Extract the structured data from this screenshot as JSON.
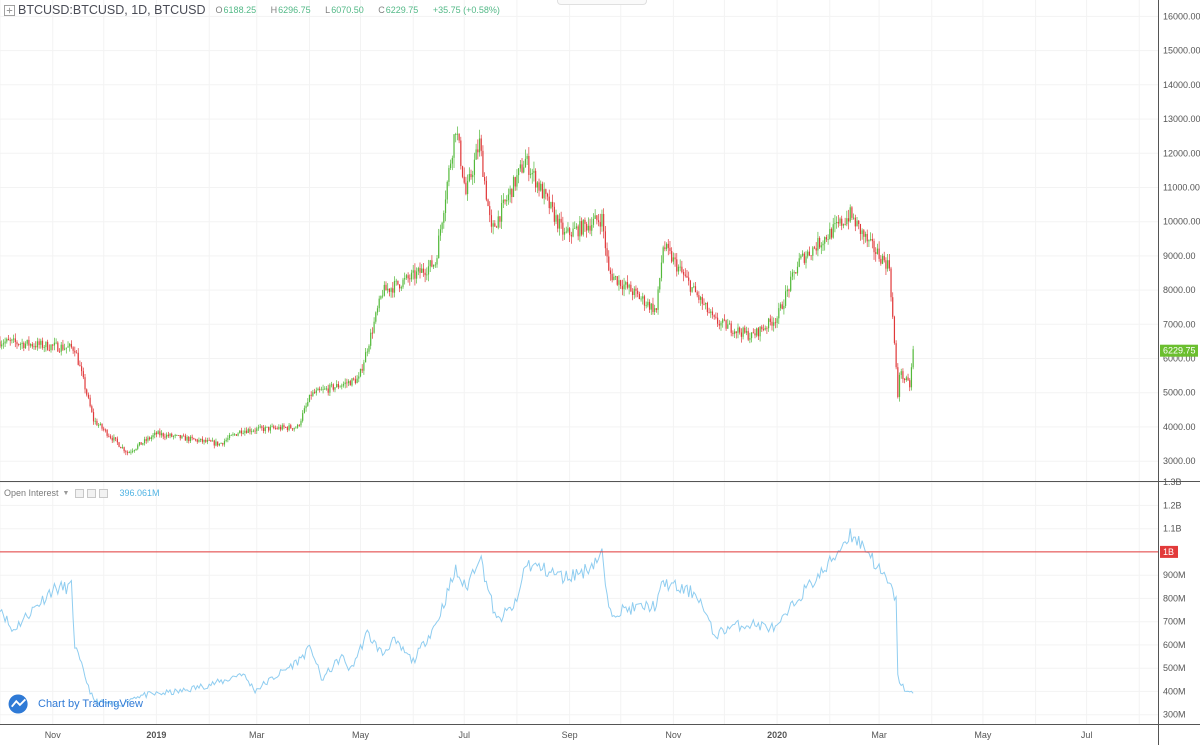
{
  "legend": {
    "symbol": "BTCUSD:BTCUSD, 1D, BTCUSD",
    "open_label": "O",
    "open": "6188.25",
    "high_label": "H",
    "high": "6296.75",
    "low_label": "L",
    "low": "6070.50",
    "close_label": "C",
    "close": "6229.75",
    "change": "+35.75 (+0.58%)"
  },
  "oi_legend": {
    "name": "Open Interest",
    "value": "396.061M"
  },
  "brand": "Chart by TradingView",
  "colors": {
    "up": "#53b93a",
    "down": "#e0383a",
    "oi_line": "#8fcdf0",
    "ref_line": "#e23a3a",
    "price_tag": "#6bbf2f"
  },
  "chart_data": [
    {
      "type": "candlestick",
      "title": "BTCUSD:BTCUSD, 1D, BTCUSD",
      "x_labels": [
        "Nov",
        "2019",
        "Mar",
        "May",
        "Jul",
        "Sep",
        "Nov",
        "2020",
        "Mar",
        "May",
        "Jul"
      ],
      "x_range": [
        "2018-10-01",
        "2020-08-12"
      ],
      "y_ticks": [
        3000,
        4000,
        5000,
        6000,
        7000,
        8000,
        9000,
        10000,
        11000,
        12000,
        13000,
        14000,
        15000,
        16000
      ],
      "ylim": [
        2420,
        16480
      ],
      "last_price_label": "6229.75",
      "grid": true,
      "series": [
        {
          "x": [
            "2018-10-01",
            "2018-11-14",
            "2018-11-25",
            "2018-12-15",
            "2019-01-01",
            "2019-02-07",
            "2019-02-20",
            "2019-03-25",
            "2019-04-02",
            "2019-04-30",
            "2019-05-14",
            "2019-06-01",
            "2019-06-14",
            "2019-06-26",
            "2019-07-02",
            "2019-07-10",
            "2019-07-17",
            "2019-08-06",
            "2019-08-29",
            "2019-09-20",
            "2019-09-24",
            "2019-10-22",
            "2019-10-26",
            "2019-11-25",
            "2019-12-17",
            "2020-01-01",
            "2020-01-14",
            "2020-02-13",
            "2020-02-24",
            "2020-03-07",
            "2020-03-12",
            "2020-03-13",
            "2020-03-19",
            "2020-03-21"
          ],
          "close": [
            6500,
            6300,
            4200,
            3250,
            3800,
            3500,
            3900,
            4000,
            4950,
            5400,
            7950,
            8400,
            8800,
            12800,
            10800,
            12300,
            9700,
            11800,
            9600,
            10100,
            8500,
            7400,
            9300,
            7100,
            6650,
            7200,
            8850,
            10200,
            9350,
            8700,
            4900,
            5600,
            5200,
            6230
          ]
        }
      ]
    },
    {
      "type": "line",
      "title": "Open Interest",
      "last_value_label": "396.061M",
      "y_ticks": [
        "300M",
        "400M",
        "500M",
        "600M",
        "700M",
        "800M",
        "900M",
        "1B",
        "1.1B",
        "1.2B",
        "1.3B"
      ],
      "ylim": [
        260000000.0,
        1305000000.0
      ],
      "hline": {
        "label": "1B",
        "value": 1000000000.0
      },
      "series": [
        {
          "name": "Open Interest",
          "x": [
            "2018-10-01",
            "2018-10-08",
            "2018-10-20",
            "2018-11-01",
            "2018-11-12",
            "2018-11-14",
            "2018-11-16",
            "2018-11-25",
            "2018-12-10",
            "2018-12-20",
            "2019-01-15",
            "2019-02-10",
            "2019-02-20",
            "2019-02-28",
            "2019-03-25",
            "2019-04-02",
            "2019-04-08",
            "2019-04-20",
            "2019-04-25",
            "2019-05-05",
            "2019-05-14",
            "2019-05-20",
            "2019-06-01",
            "2019-06-15",
            "2019-06-26",
            "2019-07-02",
            "2019-07-10",
            "2019-07-20",
            "2019-08-01",
            "2019-08-06",
            "2019-08-15",
            "2019-08-29",
            "2019-09-10",
            "2019-09-20",
            "2019-09-24",
            "2019-10-10",
            "2019-10-22",
            "2019-10-26",
            "2019-11-05",
            "2019-11-15",
            "2019-11-25",
            "2019-12-05",
            "2019-12-17",
            "2020-01-01",
            "2020-01-14",
            "2020-01-30",
            "2020-02-13",
            "2020-02-20",
            "2020-02-24",
            "2020-03-01",
            "2020-03-05",
            "2020-03-11",
            "2020-03-12",
            "2020-03-15",
            "2020-03-19",
            "2020-03-21"
          ],
          "values": [
            770000000.0,
            660000000.0,
            750000000.0,
            840000000.0,
            850000000.0,
            600000000.0,
            550000000.0,
            360000000.0,
            340000000.0,
            380000000.0,
            400000000.0,
            445000000.0,
            480000000.0,
            405000000.0,
            530000000.0,
            590000000.0,
            450000000.0,
            550000000.0,
            490000000.0,
            650000000.0,
            560000000.0,
            620000000.0,
            530000000.0,
            700000000.0,
            920000000.0,
            840000000.0,
            990000000.0,
            700000000.0,
            780000000.0,
            950000000.0,
            930000000.0,
            890000000.0,
            920000000.0,
            990000000.0,
            740000000.0,
            760000000.0,
            770000000.0,
            870000000.0,
            840000000.0,
            820000000.0,
            640000000.0,
            680000000.0,
            690000000.0,
            670000000.0,
            810000000.0,
            930000000.0,
            1080000000.0,
            1030000000.0,
            1000000000.0,
            920000000.0,
            880000000.0,
            800000000.0,
            460000000.0,
            420000000.0,
            390000000.0,
            396000000.0
          ]
        }
      ]
    }
  ]
}
